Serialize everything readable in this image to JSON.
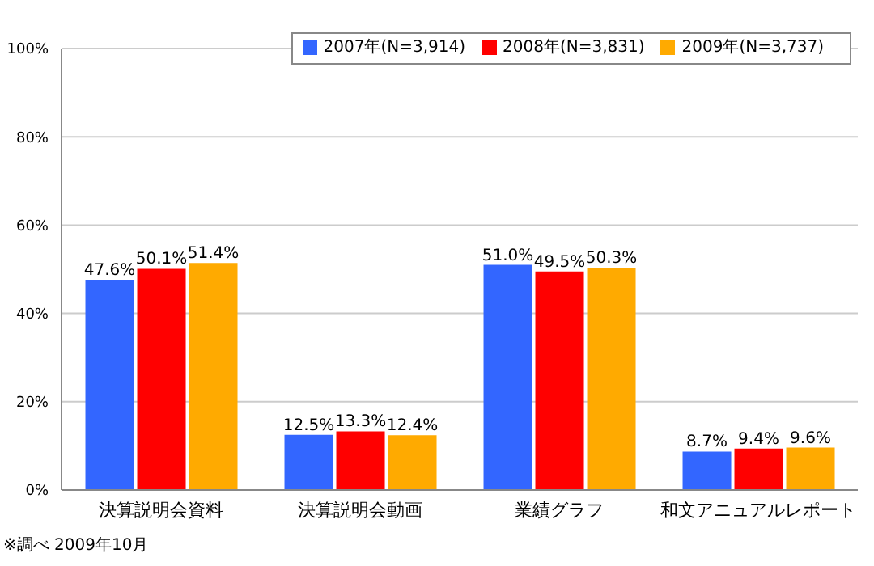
{
  "chart_data": {
    "type": "bar",
    "categories": [
      "決算説明会資料",
      "決算説明会動画",
      "業績グラフ",
      "和文アニュアルレポート"
    ],
    "series": [
      {
        "name": "2007年(N=3,914)",
        "color": "#3366ff",
        "values": [
          47.6,
          12.5,
          51.0,
          8.7
        ],
        "value_labels": [
          "47.6%",
          "12.5%",
          "51.0%",
          "8.7%"
        ]
      },
      {
        "name": "2008年(N=3,831)",
        "color": "#ff0000",
        "values": [
          50.1,
          13.3,
          49.5,
          9.4
        ],
        "value_labels": [
          "50.1%",
          "13.3%",
          "49.5%",
          "9.4%"
        ]
      },
      {
        "name": "2009年(N=3,737)",
        "color": "#ffaa00",
        "values": [
          51.4,
          12.4,
          50.3,
          9.6
        ],
        "value_labels": [
          "51.4%",
          "12.4%",
          "50.3%",
          "9.6%"
        ]
      }
    ],
    "ylim": [
      0,
      100
    ],
    "yticks": [
      {
        "value": 0,
        "label": "0%"
      },
      {
        "value": 20,
        "label": "20%"
      },
      {
        "value": 40,
        "label": "40%"
      },
      {
        "value": 60,
        "label": "60%"
      },
      {
        "value": 80,
        "label": "80%"
      },
      {
        "value": 100,
        "label": "100%"
      }
    ],
    "grid": "y",
    "legend": "top right",
    "annotations": [
      "※調べ 2009年10月"
    ]
  }
}
